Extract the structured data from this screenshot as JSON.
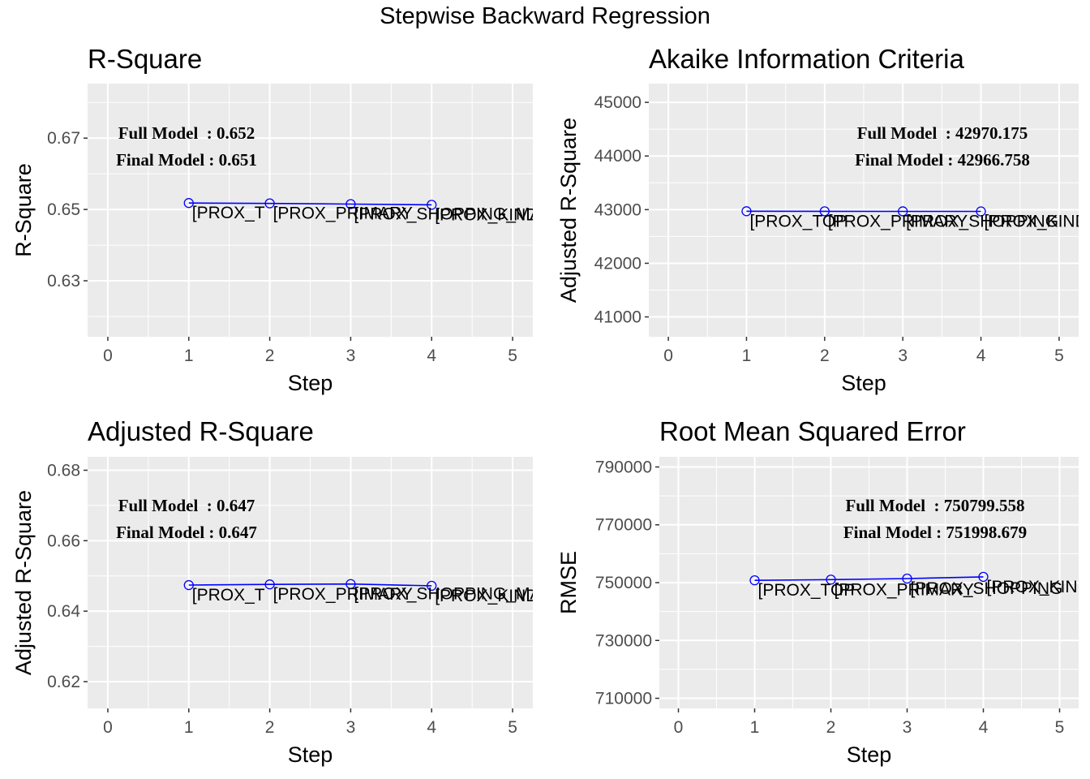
{
  "figure": {
    "title": "Stepwise Backward Regression"
  },
  "chart_data": [
    {
      "type": "line",
      "title": "R-Square",
      "xlabel": "Step",
      "ylabel": "R-Square",
      "xlim": [
        -0.25,
        5.25
      ],
      "ylim": [
        0.6143,
        0.6853
      ],
      "x_ticks": [
        0,
        1,
        2,
        3,
        4,
        5
      ],
      "y_ticks": [
        0.63,
        0.65,
        0.67
      ],
      "y_tick_labels": [
        "0.63",
        "0.65",
        "0.67"
      ],
      "grid": true,
      "series": [
        {
          "color": "#0000ff",
          "x": [
            1,
            2,
            3,
            4
          ],
          "values": [
            0.6518,
            0.6517,
            0.6515,
            0.6513
          ]
        }
      ],
      "point_labels": [
        "[PROX_T",
        "[PROX_PRIMARY",
        "[PROX_SHOPPING_MALL",
        "[PROX_KINDERGARTEN"
      ],
      "annotations": [
        "Full Model  : 0.652",
        "Final Model : 0.651"
      ]
    },
    {
      "type": "line",
      "title": "Akaike Information Criteria",
      "xlabel": "Step",
      "ylabel": "Adjusted R-Square",
      "xlim": [
        -0.25,
        5.25
      ],
      "ylim": [
        40630,
        45350
      ],
      "x_ticks": [
        0,
        1,
        2,
        3,
        4,
        5
      ],
      "y_ticks": [
        41000,
        42000,
        43000,
        44000,
        45000
      ],
      "y_tick_labels": [
        "41000",
        "42000",
        "43000",
        "44000",
        "45000"
      ],
      "grid": true,
      "series": [
        {
          "color": "#0000ff",
          "x": [
            1,
            2,
            3,
            4
          ],
          "values": [
            42970.175,
            42969.1,
            42968.0,
            42966.758
          ]
        }
      ],
      "point_labels": [
        "[PROX_TOP",
        "[PROX_PRIMARY",
        "[PROX_SHOPPING",
        "[PROX_KINDERGARTEN"
      ],
      "annotations": [
        "Full Model  : 42970.175",
        "Final Model : 42966.758"
      ]
    },
    {
      "type": "line",
      "title": "Adjusted R-Square",
      "xlabel": "Step",
      "ylabel": "Adjusted R-Square",
      "xlim": [
        -0.25,
        5.25
      ],
      "ylim": [
        0.6124,
        0.6838
      ],
      "x_ticks": [
        0,
        1,
        2,
        3,
        4,
        5
      ],
      "y_ticks": [
        0.62,
        0.64,
        0.66,
        0.68
      ],
      "y_tick_labels": [
        "0.62",
        "0.64",
        "0.66",
        "0.68"
      ],
      "grid": true,
      "series": [
        {
          "color": "#0000ff",
          "x": [
            1,
            2,
            3,
            4
          ],
          "values": [
            0.6474,
            0.6476,
            0.6477,
            0.6472
          ]
        }
      ],
      "point_labels": [
        "[PROX_T",
        "[PROX_PRIMARY",
        "[PROX_SHOPPING_MALL",
        "[PROX_KINDERGARTEN"
      ],
      "annotations": [
        "Full Model  : 0.647",
        "Final Model : 0.647"
      ]
    },
    {
      "type": "line",
      "title": "Root Mean Squared Error",
      "xlabel": "Step",
      "ylabel": "RMSE",
      "xlim": [
        -0.25,
        5.25
      ],
      "ylim": [
        706500,
        793500
      ],
      "x_ticks": [
        0,
        1,
        2,
        3,
        4,
        5
      ],
      "y_ticks": [
        710000,
        730000,
        750000,
        770000,
        790000
      ],
      "y_tick_labels": [
        "710000",
        "730000",
        "750000",
        "770000",
        "790000"
      ],
      "grid": true,
      "series": [
        {
          "color": "#0000ff",
          "x": [
            1,
            2,
            3,
            4
          ],
          "values": [
            750799.558,
            751050,
            751400,
            751998.679
          ]
        }
      ],
      "point_labels": [
        "[PROX_TOP",
        "[PROX_PRIMARY",
        "[PROX_SHOPPING",
        "[PROX_KINDERGARTEN"
      ],
      "annotations": [
        "Full Model  : 750799.558",
        "Final Model : 751998.679"
      ]
    }
  ]
}
